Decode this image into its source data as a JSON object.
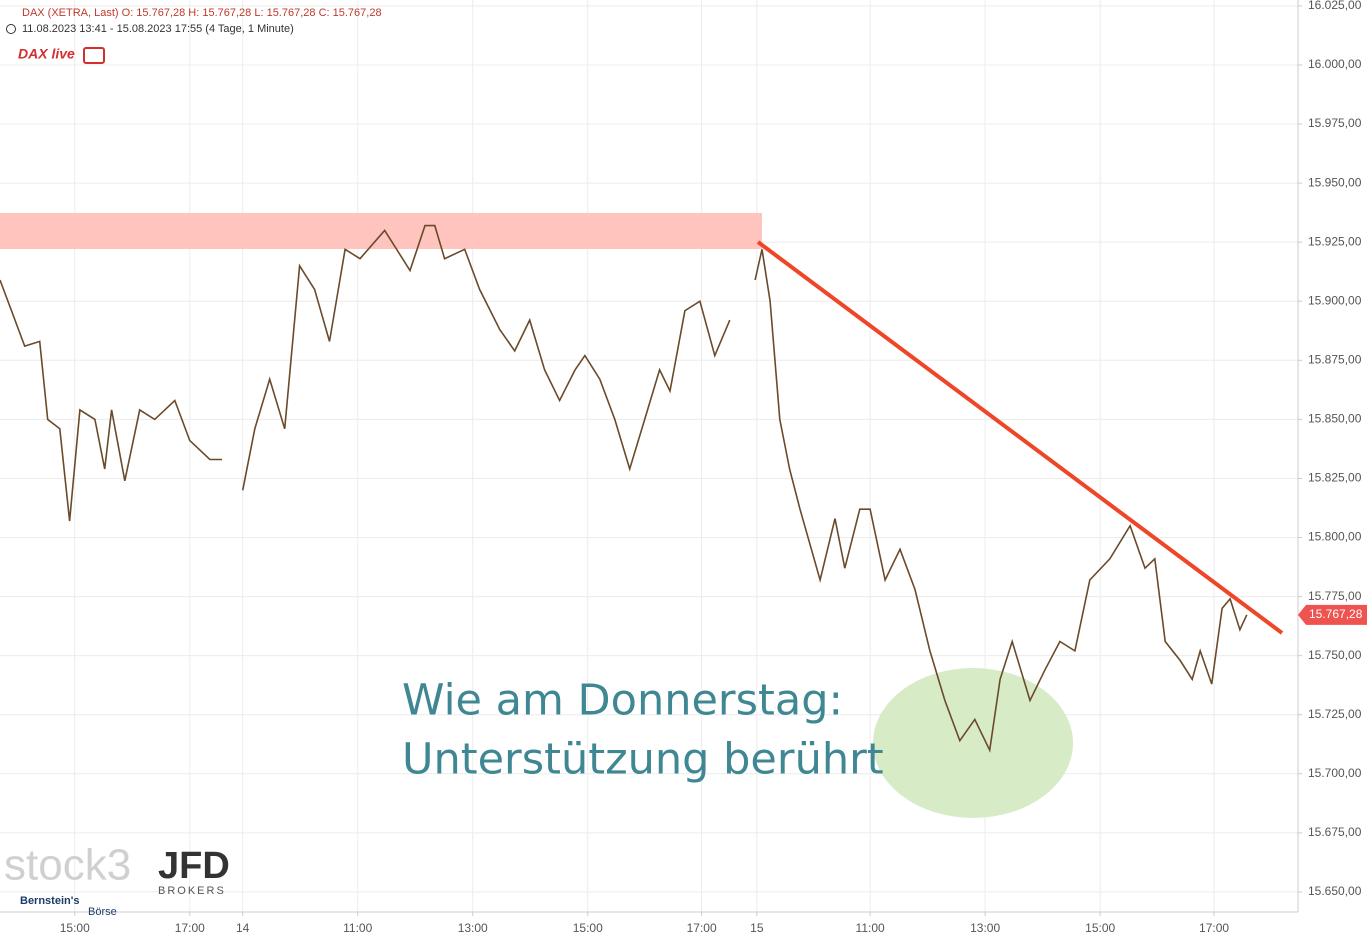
{
  "chart_data": {
    "type": "line",
    "title": "DAX (XETRA, Last)  O: 15.767,28  H: 15.767,28  L: 15.767,28  C: 15.767,28",
    "subtitle": "11.08.2023 13:41 - 15.08.2023 17:55   (4 Tage, 1 Minute)",
    "annotations": [
      "Wie am Donnerstag:",
      "Unterstützung berührt"
    ],
    "logos": [
      "DAX live",
      "stock3",
      "JFD",
      "BROKERS",
      "Bernstein's",
      "Börse"
    ],
    "last_price_label": "15.767,28",
    "xlim": [
      -1.3,
      21.27
    ],
    "ylim": [
      15641.5,
      16027.5
    ],
    "xticks": [
      {
        "value": 0,
        "label": "15:00"
      },
      {
        "value": 2,
        "label": "17:00"
      },
      {
        "value": 2.92,
        "label": "14"
      },
      {
        "value": 4.92,
        "label": "11:00"
      },
      {
        "value": 6.92,
        "label": "13:00"
      },
      {
        "value": 8.92,
        "label": "15:00"
      },
      {
        "value": 10.9,
        "label": "17:00"
      },
      {
        "value": 11.86,
        "label": "15"
      },
      {
        "value": 13.83,
        "label": "11:00"
      },
      {
        "value": 15.83,
        "label": "13:00"
      },
      {
        "value": 17.83,
        "label": "15:00"
      },
      {
        "value": 19.81,
        "label": "17:00"
      }
    ],
    "yticks": [
      {
        "value": 16025,
        "label": "16.025,00"
      },
      {
        "value": 16000,
        "label": "16.000,00"
      },
      {
        "value": 15975,
        "label": "15.975,00"
      },
      {
        "value": 15950,
        "label": "15.950,00"
      },
      {
        "value": 15925,
        "label": "15.925,00"
      },
      {
        "value": 15900,
        "label": "15.900,00"
      },
      {
        "value": 15875,
        "label": "15.875,00"
      },
      {
        "value": 15850,
        "label": "15.850,00"
      },
      {
        "value": 15825,
        "label": "15.825,00"
      },
      {
        "value": 15800,
        "label": "15.800,00"
      },
      {
        "value": 15775,
        "label": "15.775,00"
      },
      {
        "value": 15750,
        "label": "15.750,00"
      },
      {
        "value": 15725,
        "label": "15.725,00"
      },
      {
        "value": 15700,
        "label": "15.700,00"
      },
      {
        "value": 15675,
        "label": "15.675,00"
      },
      {
        "value": 15650,
        "label": "15.650,00"
      }
    ],
    "grid": true,
    "x": [
      -1.3,
      -1.04,
      -0.87,
      -0.61,
      -0.47,
      -0.26,
      -0.09,
      0.09,
      0.35,
      0.52,
      0.64,
      0.87,
      1.13,
      1.39,
      1.74,
      2.0,
      2.35,
      2.56,
      2.73,
      2.92,
      3.13,
      3.39,
      3.65,
      3.91,
      4.17,
      4.43,
      4.7,
      4.96,
      5.39,
      5.83,
      6.09,
      6.26,
      6.43,
      6.78,
      7.04,
      7.39,
      7.65,
      7.91,
      8.17,
      8.43,
      8.7,
      8.87,
      9.13,
      9.39,
      9.65,
      9.91,
      10.17,
      10.35,
      10.61,
      10.87,
      11.13,
      11.39,
      11.6,
      11.83,
      11.95,
      12.09,
      12.26,
      12.43,
      12.61,
      12.96,
      13.22,
      13.39,
      13.65,
      13.83,
      14.09,
      14.35,
      14.61,
      14.87,
      15.13,
      15.39,
      15.65,
      15.91,
      16.09,
      16.3,
      16.61,
      16.87,
      17.13,
      17.39,
      17.65,
      18.0,
      18.35,
      18.61,
      18.78,
      18.96,
      19.22,
      19.43,
      19.57,
      19.77,
      19.95,
      20.09,
      20.26,
      20.38
    ],
    "series": [
      {
        "name": "DAX",
        "color": "#6b4a2b",
        "values": [
          15909,
          15892,
          15881,
          15883,
          15850,
          15846,
          15807,
          15854,
          15850,
          15829,
          15854,
          15824,
          15854,
          15850,
          15858,
          15841,
          15833,
          15833,
          null,
          15820,
          15846,
          15867,
          15846,
          15915,
          15905,
          15883,
          15922,
          15918,
          15930,
          15913,
          15932,
          15932,
          15918,
          15922,
          15905,
          15888,
          15879,
          15892,
          15871,
          15858,
          15871,
          15877,
          15867,
          15850,
          15829,
          15850,
          15871,
          15862,
          15896,
          15900,
          15877,
          15892,
          null,
          15909,
          15922,
          15900,
          15850,
          15829,
          15812,
          15782,
          15808,
          15787,
          15812,
          15812,
          15782,
          15795,
          15778,
          15752,
          15731,
          15714,
          15723,
          15710,
          15740,
          15756,
          15731,
          15744,
          15756,
          15752,
          15782,
          15791,
          15805,
          15787,
          15791,
          15756,
          15748,
          15740,
          15752,
          15738,
          15770,
          15774,
          15761,
          15767.28
        ]
      }
    ]
  }
}
